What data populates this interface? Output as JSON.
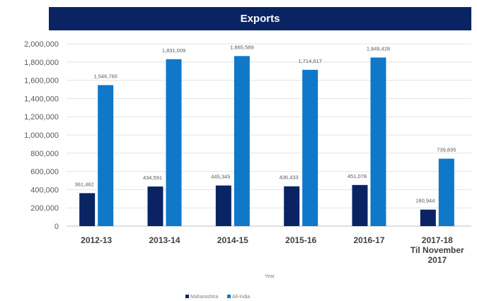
{
  "chart_data": {
    "type": "bar",
    "title": "Exports",
    "xlabel": "Year",
    "ylabel": "",
    "ylim": [
      0,
      2000000
    ],
    "yticks": [
      0,
      200000,
      400000,
      600000,
      800000,
      1000000,
      1200000,
      1400000,
      1600000,
      1800000,
      2000000
    ],
    "ytick_labels": [
      "0",
      "200,000",
      "400,000",
      "600,000",
      "800,000",
      "1,000,000",
      "1,200,000",
      "1,400,000",
      "1,600,000",
      "1,800,000",
      "2,000,000"
    ],
    "categories": [
      [
        "2012-13"
      ],
      [
        "2013-14"
      ],
      [
        "2014-15"
      ],
      [
        "2015-16"
      ],
      [
        "2016-17"
      ],
      [
        "2017-18",
        "Til November",
        "2017"
      ]
    ],
    "series": [
      {
        "name": "Maharashtra",
        "color": "#0a2463",
        "values": [
          361462,
          434591,
          445345,
          436433,
          451078,
          180944
        ],
        "labels": [
          "361,462",
          "434,591",
          "445,345",
          "436,433",
          "451,078",
          "180,944"
        ]
      },
      {
        "name": "All-India",
        "color": "#0f78c8",
        "values": [
          1546760,
          1831009,
          1865589,
          1714617,
          1849428,
          739835
        ],
        "labels": [
          "1,546,760",
          "1,831,009",
          "1,865,589",
          "1,714,617",
          "1,849,428",
          "739,835"
        ]
      }
    ],
    "grid": true,
    "legend_position": "bottom"
  }
}
